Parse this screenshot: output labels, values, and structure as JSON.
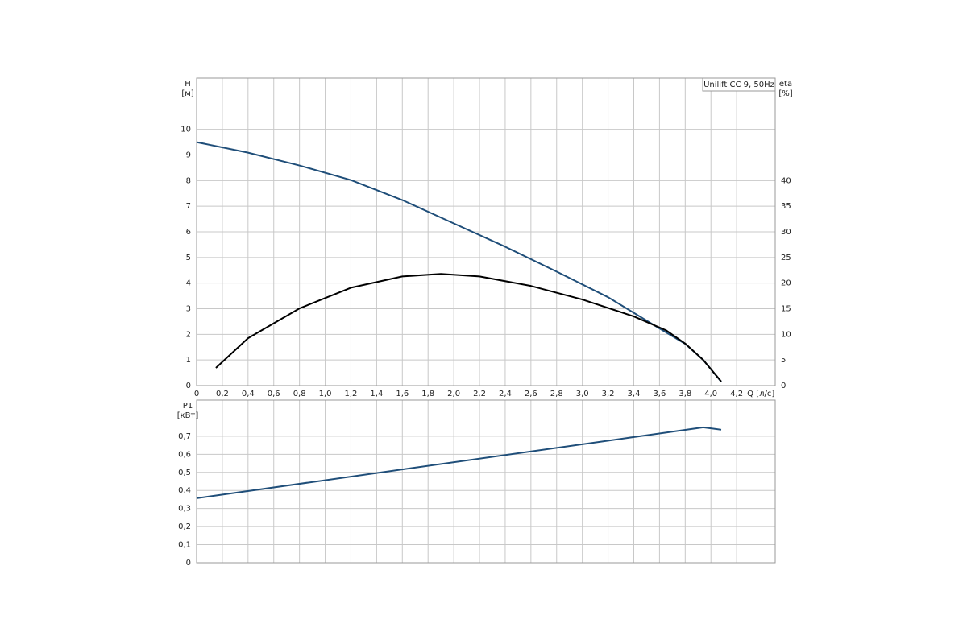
{
  "chart_data": [
    {
      "type": "line",
      "y_label": "H",
      "y_unit": "[м]",
      "y2_label": "eta",
      "y2_unit": "[%]",
      "x_label": "Q [л/с]",
      "annotation": "Unilift CC 9, 50Hz",
      "xlim": [
        0,
        4.5
      ],
      "xticks": [
        0,
        {
          "value": 0.2,
          "label": "0,2"
        },
        {
          "value": 0.4,
          "label": "0,4"
        },
        {
          "value": 0.6,
          "label": "0,6"
        },
        {
          "value": 0.8,
          "label": "0,8"
        },
        {
          "value": 1.0,
          "label": "1,0"
        },
        {
          "value": 1.2,
          "label": "1,2"
        },
        {
          "value": 1.4,
          "label": "1,4"
        },
        {
          "value": 1.6,
          "label": "1,6"
        },
        {
          "value": 1.8,
          "label": "1,8"
        },
        {
          "value": 2.0,
          "label": "2,0"
        },
        {
          "value": 2.2,
          "label": "2,2"
        },
        {
          "value": 2.4,
          "label": "2,4"
        },
        {
          "value": 2.6,
          "label": "2,6"
        },
        {
          "value": 2.8,
          "label": "2,8"
        },
        {
          "value": 3.0,
          "label": "3,0"
        },
        {
          "value": 3.2,
          "label": "3,2"
        },
        {
          "value": 3.4,
          "label": "3,4"
        },
        {
          "value": 3.6,
          "label": "3,6"
        },
        {
          "value": 3.8,
          "label": "3,8"
        },
        {
          "value": 4.0,
          "label": "4,0"
        },
        {
          "value": 4.2,
          "label": "4,2"
        }
      ],
      "ylim": [
        0,
        12
      ],
      "yticks": [
        0,
        1,
        2,
        3,
        4,
        5,
        6,
        7,
        8,
        9,
        10
      ],
      "y2lim": [
        0,
        60
      ],
      "y2ticks": [
        0,
        5,
        10,
        15,
        20,
        25,
        30,
        35,
        40
      ],
      "grid": true,
      "series": [
        {
          "color": "#1f4e79",
          "x": [
            0,
            0.4,
            0.8,
            1.2,
            1.6,
            2.0,
            2.4,
            2.8,
            3.2,
            3.6,
            3.8,
            3.94,
            4.08
          ],
          "values": [
            9.5,
            9.09,
            8.59,
            8.02,
            7.24,
            6.33,
            5.42,
            4.45,
            3.45,
            2.23,
            1.63,
            1.0,
            0.15
          ]
        },
        {
          "color": "#000000",
          "axis": "y2",
          "x": [
            0.15,
            0.4,
            0.8,
            1.2,
            1.6,
            1.9,
            2.2,
            2.6,
            3.0,
            3.4,
            3.65,
            3.8,
            3.94,
            4.08
          ],
          "values": [
            3.45,
            9.25,
            15.06,
            19.1,
            21.3,
            21.8,
            21.3,
            19.45,
            16.8,
            13.5,
            10.8,
            8.2,
            5.0,
            0.8
          ]
        }
      ]
    },
    {
      "type": "line",
      "y_label": "P1",
      "y_unit": "[кВт]",
      "xlim": [
        0,
        4.5
      ],
      "xticks": [
        0,
        0.2,
        0.4,
        0.6,
        0.8,
        1.0,
        1.2,
        1.4,
        1.6,
        1.8,
        2.0,
        2.2,
        2.4,
        2.6,
        2.8,
        3.0,
        3.2,
        3.4,
        3.6,
        3.8,
        4.0,
        4.2
      ],
      "ylim": [
        0,
        0.9
      ],
      "yticks": [
        0,
        {
          "value": 0.1,
          "label": "0,1"
        },
        {
          "value": 0.2,
          "label": "0,2"
        },
        {
          "value": 0.3,
          "label": "0,3"
        },
        {
          "value": 0.4,
          "label": "0,4"
        },
        {
          "value": 0.5,
          "label": "0,5"
        },
        {
          "value": 0.6,
          "label": "0,6"
        },
        {
          "value": 0.7,
          "label": "0,7"
        }
      ],
      "grid": true,
      "series": [
        {
          "color": "#1f4e79",
          "x": [
            0,
            3.94,
            4.08
          ],
          "values": [
            0.357,
            0.749,
            0.736
          ]
        }
      ]
    }
  ]
}
